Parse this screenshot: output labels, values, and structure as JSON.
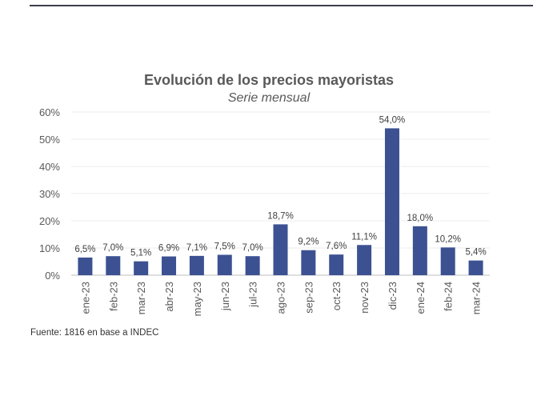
{
  "chart_data": {
    "type": "bar",
    "title": "Evolución de los precios mayoristas",
    "subtitle": "Serie mensual",
    "categories": [
      "ene-23",
      "feb-23",
      "mar-23",
      "abr-23",
      "may-23",
      "jun-23",
      "jul-23",
      "ago-23",
      "sep-23",
      "oct-23",
      "nov-23",
      "dic-23",
      "ene-24",
      "feb-24",
      "mar-24"
    ],
    "values": [
      6.5,
      7.0,
      5.1,
      6.9,
      7.1,
      7.5,
      7.0,
      18.7,
      9.2,
      7.6,
      11.1,
      54.0,
      18.0,
      10.2,
      5.4
    ],
    "data_labels": [
      "6,5%",
      "7,0%",
      "5,1%",
      "6,9%",
      "7,1%",
      "7,5%",
      "7,0%",
      "18,7%",
      "9,2%",
      "7,6%",
      "11,1%",
      "54,0%",
      "18,0%",
      "10,2%",
      "5,4%"
    ],
    "y_ticks": [
      "0%",
      "10%",
      "20%",
      "30%",
      "40%",
      "50%",
      "60%"
    ],
    "ylim": [
      0,
      60
    ],
    "grid": true,
    "xlabel": "",
    "ylabel": "",
    "bar_color": "#3c5192",
    "source": "Fuente: 1816 en base a INDEC"
  }
}
